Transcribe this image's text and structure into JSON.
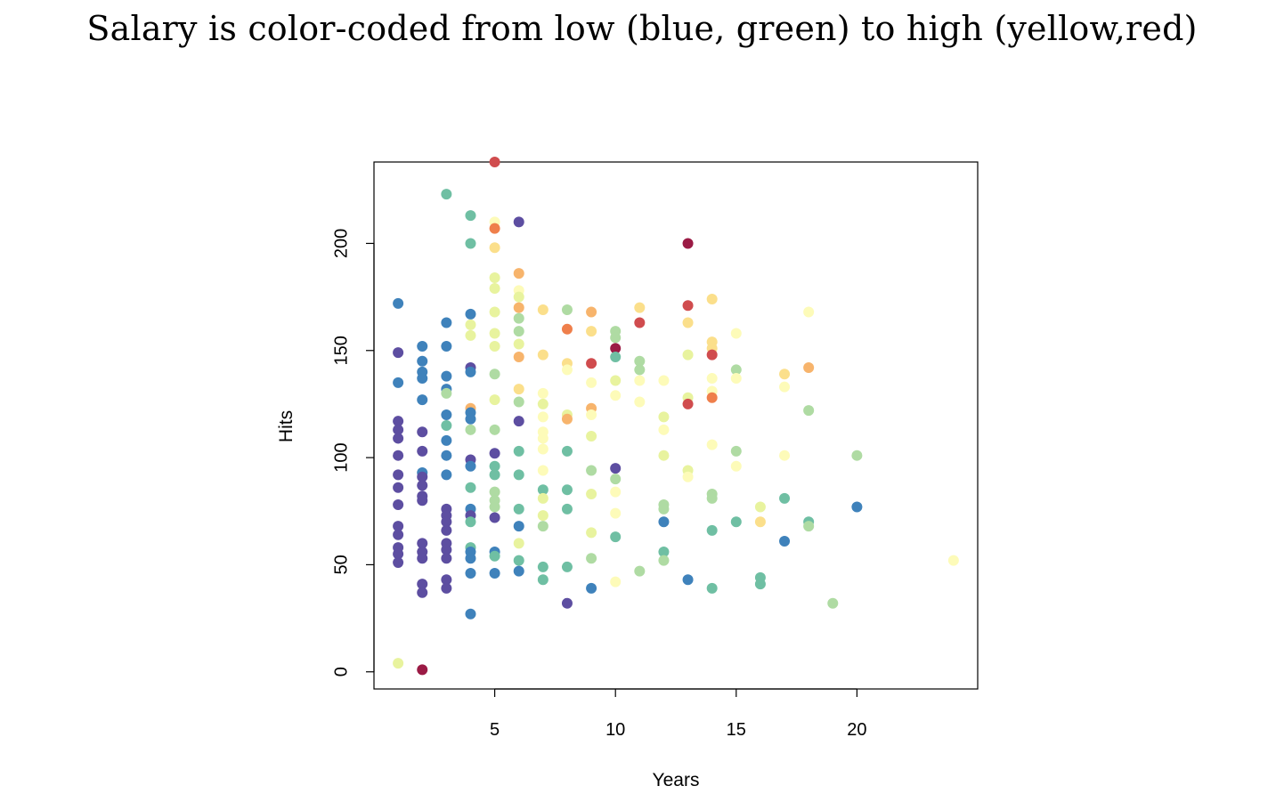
{
  "page": {
    "title": "Salary is color-coded from low (blue, green) to high (yellow,red)"
  },
  "colors": {
    "dark-red": "#9b1b45",
    "red": "#d04c4e",
    "orange": "#ef7f4b",
    "light-orange": "#f7b46c",
    "pale-yellow": "#fbdf8b",
    "cream": "#fdfbb9",
    "light-green": "#e8f39e",
    "pale-green": "#afdba3",
    "teal": "#6fbfa3",
    "blue": "#3f82bb",
    "purple": "#5d4ea1"
  },
  "chart_data": {
    "type": "scatter",
    "title": "",
    "xlabel": "Years",
    "ylabel": "Hits",
    "xlim": [
      0,
      25
    ],
    "ylim": [
      -8,
      238
    ],
    "xticks": [
      5,
      10,
      15,
      20
    ],
    "yticks": [
      0,
      50,
      100,
      150,
      200
    ],
    "grid": false,
    "color_encoding": "Salary",
    "points": [
      {
        "x": 1,
        "y": 172,
        "c": "blue"
      },
      {
        "x": 1,
        "y": 149,
        "c": "purple"
      },
      {
        "x": 1,
        "y": 135,
        "c": "blue"
      },
      {
        "x": 1,
        "y": 117,
        "c": "purple"
      },
      {
        "x": 1,
        "y": 113,
        "c": "purple"
      },
      {
        "x": 1,
        "y": 109,
        "c": "purple"
      },
      {
        "x": 1,
        "y": 101,
        "c": "purple"
      },
      {
        "x": 1,
        "y": 92,
        "c": "purple"
      },
      {
        "x": 1,
        "y": 86,
        "c": "purple"
      },
      {
        "x": 1,
        "y": 78,
        "c": "purple"
      },
      {
        "x": 1,
        "y": 68,
        "c": "purple"
      },
      {
        "x": 1,
        "y": 64,
        "c": "purple"
      },
      {
        "x": 1,
        "y": 58,
        "c": "purple"
      },
      {
        "x": 1,
        "y": 55,
        "c": "purple"
      },
      {
        "x": 1,
        "y": 51,
        "c": "purple"
      },
      {
        "x": 1,
        "y": 4,
        "c": "light-green"
      },
      {
        "x": 2,
        "y": 152,
        "c": "blue"
      },
      {
        "x": 2,
        "y": 145,
        "c": "blue"
      },
      {
        "x": 2,
        "y": 140,
        "c": "blue"
      },
      {
        "x": 2,
        "y": 137,
        "c": "blue"
      },
      {
        "x": 2,
        "y": 127,
        "c": "blue"
      },
      {
        "x": 2,
        "y": 112,
        "c": "purple"
      },
      {
        "x": 2,
        "y": 103,
        "c": "purple"
      },
      {
        "x": 2,
        "y": 93,
        "c": "blue"
      },
      {
        "x": 2,
        "y": 91,
        "c": "purple"
      },
      {
        "x": 2,
        "y": 87,
        "c": "purple"
      },
      {
        "x": 2,
        "y": 82,
        "c": "purple"
      },
      {
        "x": 2,
        "y": 80,
        "c": "purple"
      },
      {
        "x": 2,
        "y": 60,
        "c": "purple"
      },
      {
        "x": 2,
        "y": 56,
        "c": "purple"
      },
      {
        "x": 2,
        "y": 53,
        "c": "purple"
      },
      {
        "x": 2,
        "y": 41,
        "c": "purple"
      },
      {
        "x": 2,
        "y": 37,
        "c": "purple"
      },
      {
        "x": 2,
        "y": 1,
        "c": "dark-red"
      },
      {
        "x": 3,
        "y": 223,
        "c": "teal"
      },
      {
        "x": 3,
        "y": 163,
        "c": "blue"
      },
      {
        "x": 3,
        "y": 152,
        "c": "blue"
      },
      {
        "x": 3,
        "y": 138,
        "c": "blue"
      },
      {
        "x": 3,
        "y": 132,
        "c": "blue"
      },
      {
        "x": 3,
        "y": 130,
        "c": "pale-green"
      },
      {
        "x": 3,
        "y": 120,
        "c": "blue"
      },
      {
        "x": 3,
        "y": 115,
        "c": "teal"
      },
      {
        "x": 3,
        "y": 108,
        "c": "blue"
      },
      {
        "x": 3,
        "y": 101,
        "c": "blue"
      },
      {
        "x": 3,
        "y": 92,
        "c": "blue"
      },
      {
        "x": 3,
        "y": 76,
        "c": "purple"
      },
      {
        "x": 3,
        "y": 73,
        "c": "purple"
      },
      {
        "x": 3,
        "y": 70,
        "c": "purple"
      },
      {
        "x": 3,
        "y": 66,
        "c": "purple"
      },
      {
        "x": 3,
        "y": 60,
        "c": "purple"
      },
      {
        "x": 3,
        "y": 57,
        "c": "purple"
      },
      {
        "x": 3,
        "y": 53,
        "c": "purple"
      },
      {
        "x": 3,
        "y": 43,
        "c": "purple"
      },
      {
        "x": 3,
        "y": 39,
        "c": "purple"
      },
      {
        "x": 4,
        "y": 213,
        "c": "teal"
      },
      {
        "x": 4,
        "y": 200,
        "c": "teal"
      },
      {
        "x": 4,
        "y": 167,
        "c": "blue"
      },
      {
        "x": 4,
        "y": 162,
        "c": "light-green"
      },
      {
        "x": 4,
        "y": 157,
        "c": "light-green"
      },
      {
        "x": 4,
        "y": 142,
        "c": "purple"
      },
      {
        "x": 4,
        "y": 140,
        "c": "blue"
      },
      {
        "x": 4,
        "y": 123,
        "c": "light-orange"
      },
      {
        "x": 4,
        "y": 121,
        "c": "blue"
      },
      {
        "x": 4,
        "y": 118,
        "c": "blue"
      },
      {
        "x": 4,
        "y": 113,
        "c": "pale-green"
      },
      {
        "x": 4,
        "y": 99,
        "c": "purple"
      },
      {
        "x": 4,
        "y": 96,
        "c": "blue"
      },
      {
        "x": 4,
        "y": 86,
        "c": "teal"
      },
      {
        "x": 4,
        "y": 76,
        "c": "blue"
      },
      {
        "x": 4,
        "y": 73,
        "c": "purple"
      },
      {
        "x": 4,
        "y": 70,
        "c": "teal"
      },
      {
        "x": 4,
        "y": 58,
        "c": "teal"
      },
      {
        "x": 4,
        "y": 56,
        "c": "blue"
      },
      {
        "x": 4,
        "y": 53,
        "c": "blue"
      },
      {
        "x": 4,
        "y": 46,
        "c": "blue"
      },
      {
        "x": 4,
        "y": 27,
        "c": "blue"
      },
      {
        "x": 5,
        "y": 238,
        "c": "red"
      },
      {
        "x": 5,
        "y": 210,
        "c": "cream"
      },
      {
        "x": 5,
        "y": 207,
        "c": "orange"
      },
      {
        "x": 5,
        "y": 198,
        "c": "pale-yellow"
      },
      {
        "x": 5,
        "y": 184,
        "c": "light-green"
      },
      {
        "x": 5,
        "y": 179,
        "c": "light-green"
      },
      {
        "x": 5,
        "y": 168,
        "c": "light-green"
      },
      {
        "x": 5,
        "y": 158,
        "c": "light-green"
      },
      {
        "x": 5,
        "y": 152,
        "c": "light-green"
      },
      {
        "x": 5,
        "y": 139,
        "c": "pale-green"
      },
      {
        "x": 5,
        "y": 127,
        "c": "light-green"
      },
      {
        "x": 5,
        "y": 113,
        "c": "pale-green"
      },
      {
        "x": 5,
        "y": 102,
        "c": "purple"
      },
      {
        "x": 5,
        "y": 96,
        "c": "teal"
      },
      {
        "x": 5,
        "y": 92,
        "c": "teal"
      },
      {
        "x": 5,
        "y": 84,
        "c": "pale-green"
      },
      {
        "x": 5,
        "y": 80,
        "c": "pale-green"
      },
      {
        "x": 5,
        "y": 77,
        "c": "pale-green"
      },
      {
        "x": 5,
        "y": 72,
        "c": "purple"
      },
      {
        "x": 5,
        "y": 56,
        "c": "blue"
      },
      {
        "x": 5,
        "y": 54,
        "c": "teal"
      },
      {
        "x": 5,
        "y": 46,
        "c": "blue"
      },
      {
        "x": 6,
        "y": 210,
        "c": "purple"
      },
      {
        "x": 6,
        "y": 186,
        "c": "light-orange"
      },
      {
        "x": 6,
        "y": 178,
        "c": "cream"
      },
      {
        "x": 6,
        "y": 175,
        "c": "light-green"
      },
      {
        "x": 6,
        "y": 170,
        "c": "light-orange"
      },
      {
        "x": 6,
        "y": 165,
        "c": "pale-green"
      },
      {
        "x": 6,
        "y": 159,
        "c": "pale-green"
      },
      {
        "x": 6,
        "y": 153,
        "c": "light-green"
      },
      {
        "x": 6,
        "y": 147,
        "c": "light-orange"
      },
      {
        "x": 6,
        "y": 132,
        "c": "pale-yellow"
      },
      {
        "x": 6,
        "y": 126,
        "c": "pale-green"
      },
      {
        "x": 6,
        "y": 117,
        "c": "purple"
      },
      {
        "x": 6,
        "y": 103,
        "c": "teal"
      },
      {
        "x": 6,
        "y": 92,
        "c": "teal"
      },
      {
        "x": 6,
        "y": 76,
        "c": "teal"
      },
      {
        "x": 6,
        "y": 68,
        "c": "blue"
      },
      {
        "x": 6,
        "y": 60,
        "c": "light-green"
      },
      {
        "x": 6,
        "y": 52,
        "c": "teal"
      },
      {
        "x": 6,
        "y": 47,
        "c": "blue"
      },
      {
        "x": 7,
        "y": 169,
        "c": "pale-yellow"
      },
      {
        "x": 7,
        "y": 148,
        "c": "pale-yellow"
      },
      {
        "x": 7,
        "y": 130,
        "c": "cream"
      },
      {
        "x": 7,
        "y": 125,
        "c": "light-green"
      },
      {
        "x": 7,
        "y": 119,
        "c": "cream"
      },
      {
        "x": 7,
        "y": 112,
        "c": "cream"
      },
      {
        "x": 7,
        "y": 109,
        "c": "cream"
      },
      {
        "x": 7,
        "y": 104,
        "c": "cream"
      },
      {
        "x": 7,
        "y": 94,
        "c": "cream"
      },
      {
        "x": 7,
        "y": 85,
        "c": "teal"
      },
      {
        "x": 7,
        "y": 81,
        "c": "light-green"
      },
      {
        "x": 7,
        "y": 73,
        "c": "light-green"
      },
      {
        "x": 7,
        "y": 68,
        "c": "pale-green"
      },
      {
        "x": 7,
        "y": 49,
        "c": "teal"
      },
      {
        "x": 7,
        "y": 43,
        "c": "teal"
      },
      {
        "x": 8,
        "y": 169,
        "c": "pale-green"
      },
      {
        "x": 8,
        "y": 160,
        "c": "orange"
      },
      {
        "x": 8,
        "y": 144,
        "c": "pale-yellow"
      },
      {
        "x": 8,
        "y": 141,
        "c": "cream"
      },
      {
        "x": 8,
        "y": 120,
        "c": "light-green"
      },
      {
        "x": 8,
        "y": 118,
        "c": "light-orange"
      },
      {
        "x": 8,
        "y": 103,
        "c": "teal"
      },
      {
        "x": 8,
        "y": 85,
        "c": "teal"
      },
      {
        "x": 8,
        "y": 76,
        "c": "teal"
      },
      {
        "x": 8,
        "y": 49,
        "c": "teal"
      },
      {
        "x": 8,
        "y": 32,
        "c": "purple"
      },
      {
        "x": 9,
        "y": 168,
        "c": "light-orange"
      },
      {
        "x": 9,
        "y": 159,
        "c": "pale-yellow"
      },
      {
        "x": 9,
        "y": 144,
        "c": "red"
      },
      {
        "x": 9,
        "y": 135,
        "c": "cream"
      },
      {
        "x": 9,
        "y": 123,
        "c": "light-orange"
      },
      {
        "x": 9,
        "y": 120,
        "c": "cream"
      },
      {
        "x": 9,
        "y": 110,
        "c": "light-green"
      },
      {
        "x": 9,
        "y": 94,
        "c": "pale-green"
      },
      {
        "x": 9,
        "y": 83,
        "c": "light-green"
      },
      {
        "x": 9,
        "y": 65,
        "c": "light-green"
      },
      {
        "x": 9,
        "y": 53,
        "c": "pale-green"
      },
      {
        "x": 9,
        "y": 39,
        "c": "blue"
      },
      {
        "x": 10,
        "y": 159,
        "c": "pale-green"
      },
      {
        "x": 10,
        "y": 156,
        "c": "pale-green"
      },
      {
        "x": 10,
        "y": 151,
        "c": "dark-red"
      },
      {
        "x": 10,
        "y": 147,
        "c": "teal"
      },
      {
        "x": 10,
        "y": 136,
        "c": "light-green"
      },
      {
        "x": 10,
        "y": 129,
        "c": "cream"
      },
      {
        "x": 10,
        "y": 95,
        "c": "purple"
      },
      {
        "x": 10,
        "y": 90,
        "c": "pale-green"
      },
      {
        "x": 10,
        "y": 84,
        "c": "cream"
      },
      {
        "x": 10,
        "y": 74,
        "c": "cream"
      },
      {
        "x": 10,
        "y": 63,
        "c": "teal"
      },
      {
        "x": 10,
        "y": 42,
        "c": "cream"
      },
      {
        "x": 11,
        "y": 170,
        "c": "pale-yellow"
      },
      {
        "x": 11,
        "y": 163,
        "c": "red"
      },
      {
        "x": 11,
        "y": 145,
        "c": "pale-green"
      },
      {
        "x": 11,
        "y": 141,
        "c": "pale-green"
      },
      {
        "x": 11,
        "y": 136,
        "c": "cream"
      },
      {
        "x": 11,
        "y": 126,
        "c": "cream"
      },
      {
        "x": 11,
        "y": 47,
        "c": "pale-green"
      },
      {
        "x": 12,
        "y": 136,
        "c": "cream"
      },
      {
        "x": 12,
        "y": 119,
        "c": "light-green"
      },
      {
        "x": 12,
        "y": 113,
        "c": "cream"
      },
      {
        "x": 12,
        "y": 101,
        "c": "light-green"
      },
      {
        "x": 12,
        "y": 78,
        "c": "pale-green"
      },
      {
        "x": 12,
        "y": 76,
        "c": "pale-green"
      },
      {
        "x": 12,
        "y": 70,
        "c": "blue"
      },
      {
        "x": 12,
        "y": 56,
        "c": "teal"
      },
      {
        "x": 12,
        "y": 52,
        "c": "pale-green"
      },
      {
        "x": 13,
        "y": 200,
        "c": "dark-red"
      },
      {
        "x": 13,
        "y": 171,
        "c": "red"
      },
      {
        "x": 13,
        "y": 163,
        "c": "pale-yellow"
      },
      {
        "x": 13,
        "y": 148,
        "c": "light-green"
      },
      {
        "x": 13,
        "y": 128,
        "c": "light-green"
      },
      {
        "x": 13,
        "y": 125,
        "c": "red"
      },
      {
        "x": 13,
        "y": 94,
        "c": "light-green"
      },
      {
        "x": 13,
        "y": 91,
        "c": "cream"
      },
      {
        "x": 13,
        "y": 43,
        "c": "blue"
      },
      {
        "x": 14,
        "y": 174,
        "c": "pale-yellow"
      },
      {
        "x": 14,
        "y": 154,
        "c": "pale-yellow"
      },
      {
        "x": 14,
        "y": 151,
        "c": "pale-yellow"
      },
      {
        "x": 14,
        "y": 148,
        "c": "red"
      },
      {
        "x": 14,
        "y": 137,
        "c": "cream"
      },
      {
        "x": 14,
        "y": 131,
        "c": "cream"
      },
      {
        "x": 14,
        "y": 128,
        "c": "orange"
      },
      {
        "x": 14,
        "y": 106,
        "c": "cream"
      },
      {
        "x": 14,
        "y": 83,
        "c": "pale-green"
      },
      {
        "x": 14,
        "y": 81,
        "c": "pale-green"
      },
      {
        "x": 14,
        "y": 66,
        "c": "teal"
      },
      {
        "x": 14,
        "y": 39,
        "c": "teal"
      },
      {
        "x": 15,
        "y": 158,
        "c": "cream"
      },
      {
        "x": 15,
        "y": 141,
        "c": "pale-green"
      },
      {
        "x": 15,
        "y": 137,
        "c": "cream"
      },
      {
        "x": 15,
        "y": 103,
        "c": "pale-green"
      },
      {
        "x": 15,
        "y": 96,
        "c": "cream"
      },
      {
        "x": 15,
        "y": 70,
        "c": "teal"
      },
      {
        "x": 16,
        "y": 77,
        "c": "light-green"
      },
      {
        "x": 16,
        "y": 70,
        "c": "pale-yellow"
      },
      {
        "x": 16,
        "y": 44,
        "c": "teal"
      },
      {
        "x": 16,
        "y": 41,
        "c": "teal"
      },
      {
        "x": 17,
        "y": 139,
        "c": "pale-yellow"
      },
      {
        "x": 17,
        "y": 133,
        "c": "cream"
      },
      {
        "x": 17,
        "y": 101,
        "c": "cream"
      },
      {
        "x": 17,
        "y": 81,
        "c": "teal"
      },
      {
        "x": 17,
        "y": 61,
        "c": "blue"
      },
      {
        "x": 18,
        "y": 168,
        "c": "cream"
      },
      {
        "x": 18,
        "y": 142,
        "c": "light-orange"
      },
      {
        "x": 18,
        "y": 122,
        "c": "pale-green"
      },
      {
        "x": 18,
        "y": 70,
        "c": "teal"
      },
      {
        "x": 18,
        "y": 68,
        "c": "pale-green"
      },
      {
        "x": 19,
        "y": 32,
        "c": "pale-green"
      },
      {
        "x": 20,
        "y": 101,
        "c": "pale-green"
      },
      {
        "x": 20,
        "y": 77,
        "c": "blue"
      },
      {
        "x": 24,
        "y": 52,
        "c": "cream"
      }
    ]
  }
}
